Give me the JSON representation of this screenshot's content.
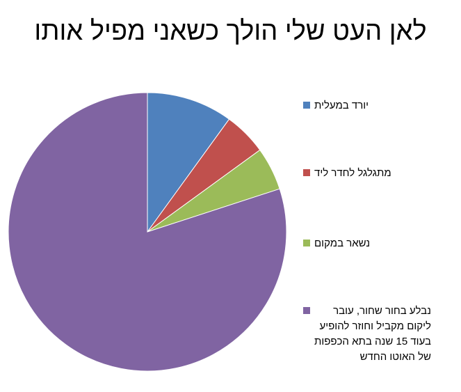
{
  "chart_data": {
    "type": "pie",
    "title": "לאן העט שלי הולך כשאני מפיל אותו",
    "legend_position": "right",
    "slices": [
      {
        "label": "יורד במעלית",
        "value": 10,
        "color": "#4F81BD"
      },
      {
        "label": "מתגלגל לחדר ליד",
        "value": 5,
        "color": "#C0504D"
      },
      {
        "label": "נשאר במקום",
        "value": 5,
        "color": "#9BBB59"
      },
      {
        "label": "נבלע בחור שחור, עובר\nליקום מקביל וחוזר להופיע\nבעוד 15 שנה בתא הכפפות\nשל האוטו החדש",
        "value": 80,
        "color": "#8064A2"
      }
    ]
  }
}
